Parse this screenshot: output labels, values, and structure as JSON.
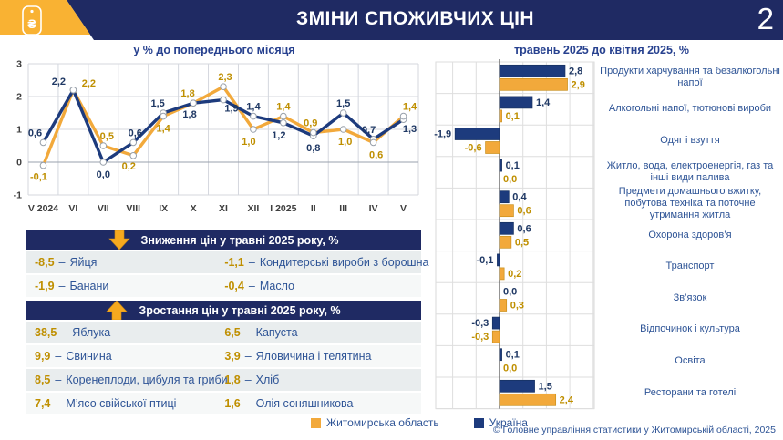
{
  "header": {
    "title": "ЗМІНИ СПОЖИВЧИХ ЦІН",
    "page_number": "2",
    "logo_symbol": "₴"
  },
  "colors": {
    "navy": "#1f2a63",
    "brand_yellow": "#f9b233",
    "series_blue": "#1d3b7d",
    "series_yellow": "#f2a93b",
    "label_blue": "#1f3864",
    "label_gold": "#bf8f00",
    "text_blue": "#2e5496",
    "arrow_gold": "#f6a91f"
  },
  "chart_data": [
    {
      "type": "line",
      "title": "у % до попереднього місяця",
      "categories": [
        "V 2024",
        "VI",
        "VII",
        "VIII",
        "IX",
        "X",
        "XI",
        "XII",
        "I 2025",
        "II",
        "III",
        "IV",
        "V"
      ],
      "ylim": [
        -1,
        3
      ],
      "yticks": [
        3,
        2,
        1,
        0,
        -1
      ],
      "grid": true,
      "series": [
        {
          "name": "Україна",
          "color": "#1d3b7d",
          "values": [
            0.6,
            2.2,
            0.0,
            0.6,
            1.5,
            1.8,
            1.9,
            1.4,
            1.2,
            0.8,
            1.5,
            0.7,
            1.3
          ],
          "label_offsets": [
            [
              -9,
              -7
            ],
            [
              -16,
              -6
            ],
            [
              0,
              17
            ],
            [
              2,
              -7
            ],
            [
              -6,
              -7
            ],
            [
              -4,
              16
            ],
            [
              9,
              13
            ],
            [
              0,
              -7
            ],
            [
              -5,
              17
            ],
            [
              0,
              17
            ],
            [
              0,
              -7
            ],
            [
              -5,
              -7
            ],
            [
              7,
              14
            ]
          ]
        },
        {
          "name": "Житомирська область",
          "color": "#f2a93b",
          "values": [
            -0.1,
            2.2,
            0.5,
            0.2,
            1.4,
            1.8,
            2.3,
            1.0,
            1.4,
            0.9,
            1.0,
            0.6,
            1.4
          ],
          "label_offsets": [
            [
              -5,
              16
            ],
            [
              17,
              -4
            ],
            [
              4,
              -7
            ],
            [
              -5,
              15
            ],
            [
              0,
              17
            ],
            [
              -6,
              -7
            ],
            [
              2,
              -7
            ],
            [
              -5,
              17
            ],
            [
              0,
              -7
            ],
            [
              -3,
              -7
            ],
            [
              2,
              17
            ],
            [
              3,
              17
            ],
            [
              7,
              -7
            ]
          ]
        }
      ]
    },
    {
      "type": "bar",
      "orientation": "horizontal",
      "title": "травень 2025 до квітня 2025, %",
      "categories": [
        "Продукти харчування та безалкогольні напої",
        "Алкогольні напої, тютюнові вироби",
        "Одяг і взуття",
        "Житло, вода, електроенергія, газ та інші види палива",
        "Предмети домашнього вжитку, побутова техніка та поточне утримання житла",
        "Охорона здоров’я",
        "Транспорт",
        "Зв’язок",
        "Відпочинок і культура",
        "Освіта",
        "Ресторани та готелі"
      ],
      "xlim": [
        -2.75,
        4.05
      ],
      "grid": true,
      "series": [
        {
          "name": "Україна",
          "color": "#1d3b7d",
          "values": [
            2.8,
            1.4,
            -1.9,
            0.1,
            0.4,
            0.6,
            -0.1,
            0.0,
            -0.3,
            0.1,
            1.5
          ]
        },
        {
          "name": "Житомирська область",
          "color": "#f2a93b",
          "values": [
            2.9,
            0.1,
            -0.6,
            0.0,
            0.6,
            0.5,
            0.2,
            0.3,
            -0.3,
            0.0,
            2.4
          ]
        }
      ]
    }
  ],
  "tables": [
    {
      "header": "Зниження цін у травні 2025 року, %",
      "arrow": "down",
      "rows": [
        [
          {
            "value": "-8,5",
            "label": "Яйця"
          },
          {
            "value": "-1,1",
            "label": "Кондитерські вироби з борошна"
          }
        ],
        [
          {
            "value": "-1,9",
            "label": "Банани"
          },
          {
            "value": "-0,4",
            "label": "Масло"
          }
        ]
      ]
    },
    {
      "header": "Зростання цін у травні 2025 року, %",
      "arrow": "up",
      "rows": [
        [
          {
            "value": "38,5",
            "label": "Яблука"
          },
          {
            "value": "6,5",
            "label": "Капуста"
          }
        ],
        [
          {
            "value": "9,9",
            "label": "Свинина"
          },
          {
            "value": "3,9",
            "label": "Яловичина і телятина"
          }
        ],
        [
          {
            "value": "8,5",
            "label": "Коренеплоди, цибуля та гриби"
          },
          {
            "value": "1,8",
            "label": "Хліб"
          }
        ],
        [
          {
            "value": "7,4",
            "label": "М’ясо свійської птиці"
          },
          {
            "value": "1,6",
            "label": "Олія соняшникова"
          }
        ]
      ]
    }
  ],
  "legend": [
    {
      "label": "Житомирська область",
      "color": "#f2a93b"
    },
    {
      "label": "Україна",
      "color": "#1d3b7d"
    }
  ],
  "footer": "© Головне управління статистики у Житомирській області, 2025"
}
